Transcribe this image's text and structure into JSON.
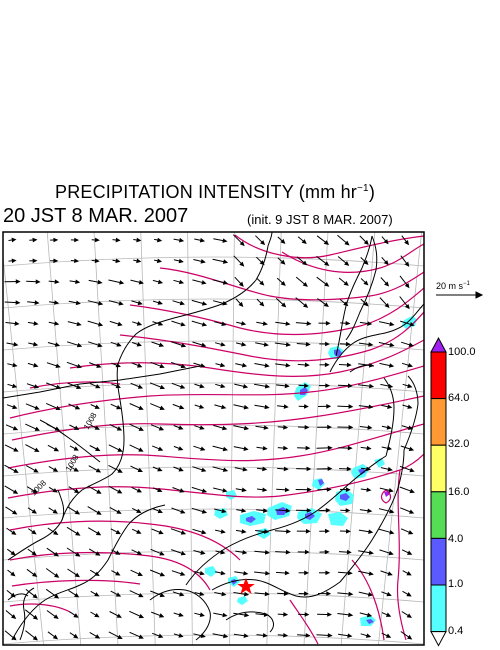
{
  "header": {
    "title_main": "PRECIPITATION INTENSITY (mm hr",
    "title_sup": "−1",
    "title_close": ")",
    "valid_time": "20 JST 8 MAR. 2007",
    "init_time": "(init. 9 JST 8 MAR. 2007)"
  },
  "wind_reference": {
    "label_main": "20 m s",
    "label_sup": "−1",
    "speed_mps": 20
  },
  "pressure_labels": [
    "1008",
    "1008",
    "1008"
  ],
  "colorbar": {
    "levels": [
      "100.0",
      "64.0",
      "32.0",
      "16.0",
      "4.0",
      "1.0",
      "0.4"
    ],
    "colors": [
      "#a020f0",
      "#ff0000",
      "#ff9933",
      "#ffff66",
      "#55dd55",
      "#5a5aff",
      "#55ffff",
      "#ffffff"
    ]
  },
  "colors": {
    "isobar": "#cc0066",
    "grid": "#b8b8b8",
    "coast": "#000000",
    "marker": "#ff0000"
  }
}
